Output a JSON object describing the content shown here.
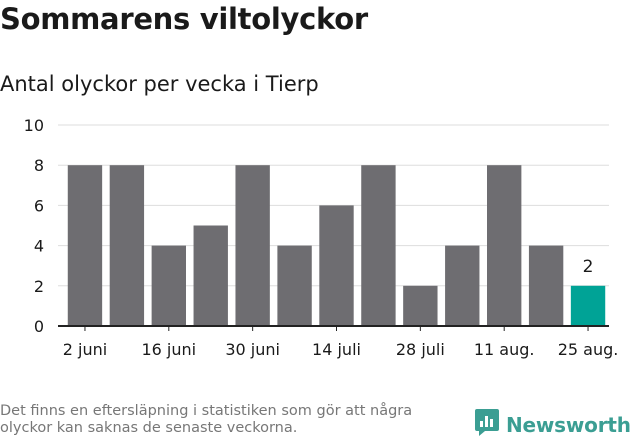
{
  "title": "Sommarens viltolyckor",
  "subtitle": "Antal olyckor per vecka i Tierp",
  "footnote": "Det finns en eftersläpning i statistiken som gör att några olyckor kan saknas de senaste veckorna.",
  "brand": "Newsworthy",
  "colors": {
    "bar": "#6e6d71",
    "highlight": "#00a396",
    "grid": "#dddddd",
    "text": "#1a1a1a",
    "brand": "#3b9e93"
  },
  "chart_data": {
    "type": "bar",
    "title": "Sommarens viltolyckor",
    "subtitle": "Antal olyckor per vecka i Tierp",
    "x_tick_labels": [
      "2 juni",
      "16 juni",
      "30 juni",
      "14 juli",
      "28 juli",
      "11 aug.",
      "25 aug."
    ],
    "values": [
      8,
      8,
      4,
      5,
      8,
      4,
      6,
      8,
      2,
      4,
      8,
      4,
      2
    ],
    "highlight_index": 12,
    "data_labels": [
      {
        "index": 12,
        "text": "2"
      }
    ],
    "yticks": [
      0,
      2,
      4,
      6,
      8,
      10
    ],
    "ylim": [
      0,
      10
    ],
    "grid": true,
    "legend": "none"
  }
}
